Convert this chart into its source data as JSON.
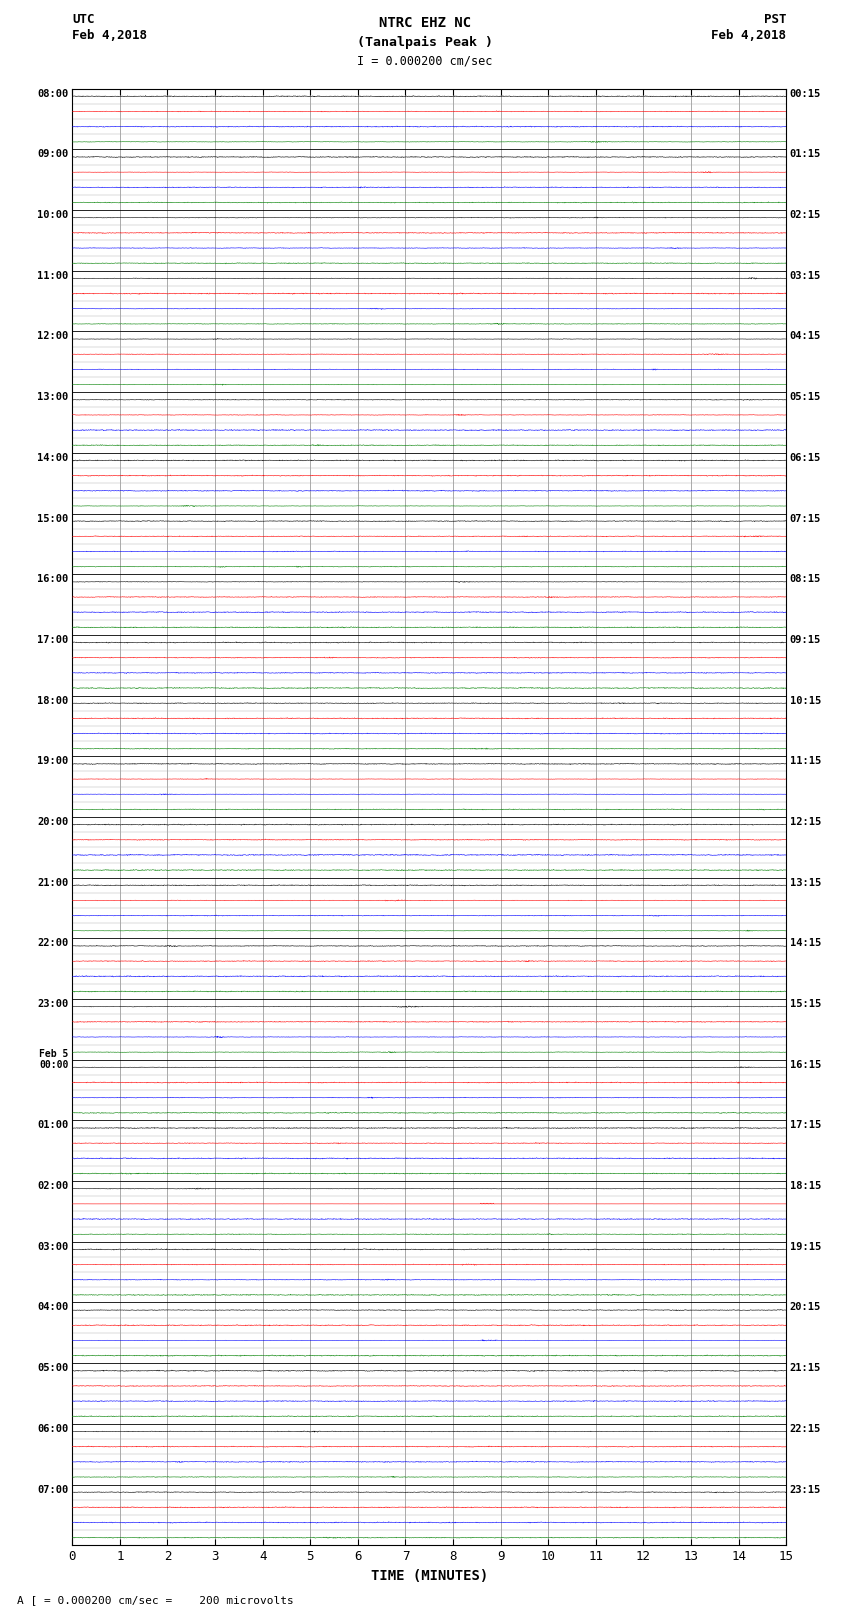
{
  "title_line1": "NTRC EHZ NC",
  "title_line2": "(Tanalpais Peak )",
  "scale_text": "I = 0.000200 cm/sec",
  "left_label": "UTC",
  "left_date": "Feb 4,2018",
  "right_label": "PST",
  "right_date": "Feb 4,2018",
  "xlabel": "TIME (MINUTES)",
  "footer": "A [ = 0.000200 cm/sec =    200 microvolts",
  "xlim": [
    0,
    15
  ],
  "xticks": [
    0,
    1,
    2,
    3,
    4,
    5,
    6,
    7,
    8,
    9,
    10,
    11,
    12,
    13,
    14,
    15
  ],
  "num_rows": 24,
  "colors": [
    "black",
    "red",
    "blue",
    "green"
  ],
  "bg_color": "#ffffff",
  "figsize": [
    8.5,
    16.13
  ],
  "dpi": 100,
  "utc_times": [
    "08:00",
    "09:00",
    "10:00",
    "11:00",
    "12:00",
    "13:00",
    "14:00",
    "15:00",
    "16:00",
    "17:00",
    "18:00",
    "19:00",
    "20:00",
    "21:00",
    "22:00",
    "23:00",
    "Feb 5\n00:00",
    "01:00",
    "02:00",
    "03:00",
    "04:00",
    "05:00",
    "06:00",
    "07:00"
  ],
  "pst_times": [
    "00:15",
    "01:15",
    "02:15",
    "03:15",
    "04:15",
    "05:15",
    "06:15",
    "07:15",
    "08:15",
    "09:15",
    "10:15",
    "11:15",
    "12:15",
    "13:15",
    "14:15",
    "15:15",
    "16:15",
    "17:15",
    "18:15",
    "19:15",
    "20:15",
    "21:15",
    "22:15",
    "23:15"
  ]
}
